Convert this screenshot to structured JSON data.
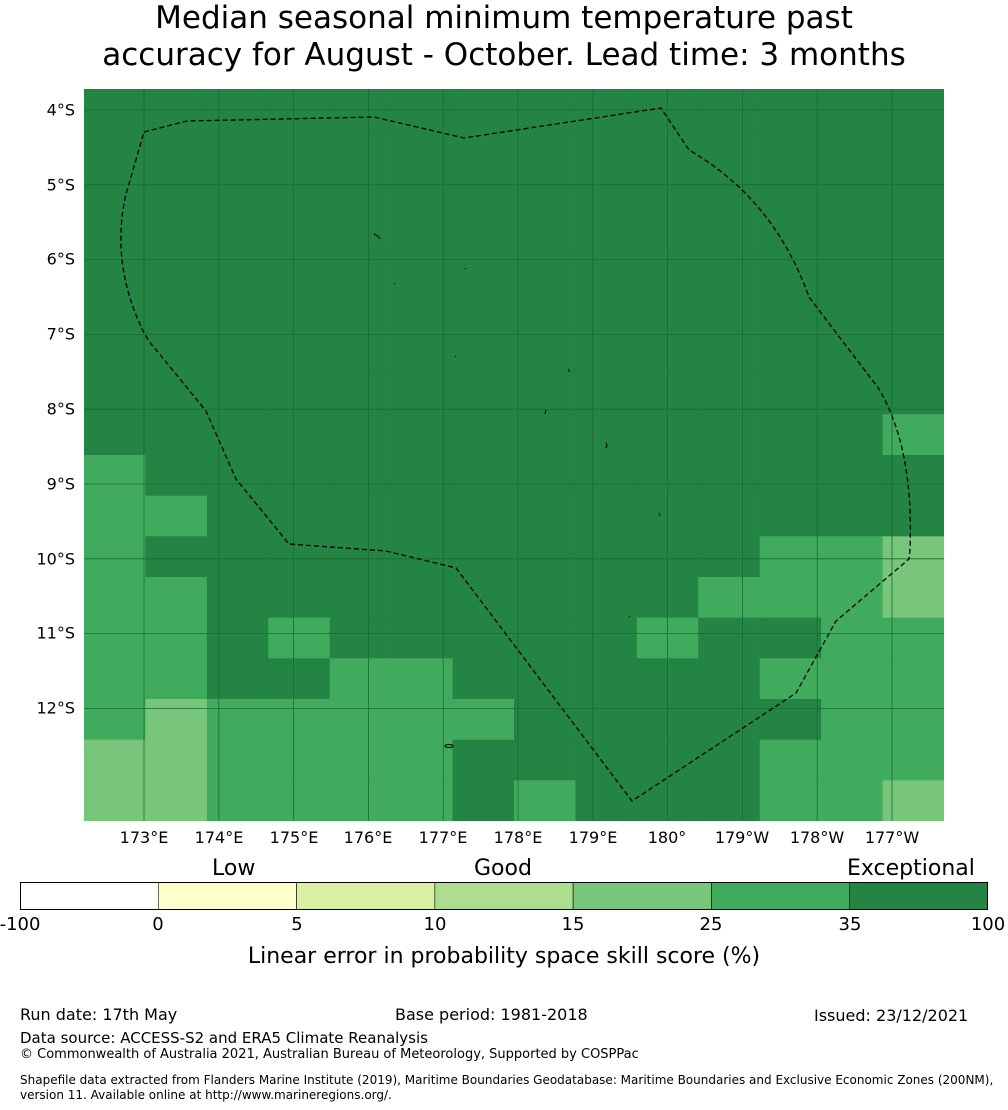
{
  "title": {
    "line1": "Median seasonal minimum temperature past",
    "line2": "accuracy for August - October. Lead time: 3 months"
  },
  "map": {
    "lat_labels": [
      "4°S",
      "5°S",
      "6°S",
      "7°S",
      "8°S",
      "9°S",
      "10°S",
      "11°S",
      "12°S"
    ],
    "lon_labels": [
      "173°E",
      "174°E",
      "175°E",
      "176°E",
      "177°E",
      "178°E",
      "179°E",
      "180°",
      "179°W",
      "178°W",
      "177°W"
    ],
    "grid": "on",
    "boundary_style": "dashed black EEZ outline",
    "skill_grid": {
      "columns": 14,
      "rows": 18,
      "legend_index_note": "values are colorbar bin indices: 0=<0, 1=0-5, 2=5-10, 3=10-15, 4=15-25, 5=25-35, 6=35-100",
      "cells": [
        [
          6,
          6,
          6,
          6,
          6,
          6,
          6,
          6,
          6,
          6,
          6,
          6,
          6,
          6
        ],
        [
          6,
          6,
          6,
          6,
          6,
          6,
          6,
          6,
          6,
          6,
          6,
          6,
          6,
          6
        ],
        [
          6,
          6,
          6,
          6,
          6,
          6,
          6,
          6,
          6,
          6,
          6,
          6,
          6,
          6
        ],
        [
          6,
          6,
          6,
          6,
          6,
          6,
          6,
          6,
          6,
          6,
          6,
          6,
          6,
          6
        ],
        [
          6,
          6,
          6,
          6,
          6,
          6,
          6,
          6,
          6,
          6,
          6,
          6,
          6,
          6
        ],
        [
          6,
          6,
          6,
          6,
          6,
          6,
          6,
          6,
          6,
          6,
          6,
          6,
          6,
          6
        ],
        [
          6,
          6,
          6,
          6,
          6,
          6,
          6,
          6,
          6,
          6,
          6,
          6,
          6,
          6
        ],
        [
          6,
          6,
          6,
          6,
          6,
          6,
          6,
          6,
          6,
          6,
          6,
          6,
          6,
          6
        ],
        [
          6,
          6,
          6,
          6,
          6,
          6,
          6,
          6,
          6,
          6,
          6,
          6,
          6,
          5
        ],
        [
          5,
          6,
          6,
          6,
          6,
          6,
          6,
          6,
          6,
          6,
          6,
          6,
          6,
          6
        ],
        [
          5,
          5,
          6,
          6,
          6,
          6,
          6,
          6,
          6,
          6,
          6,
          6,
          6,
          6
        ],
        [
          5,
          6,
          6,
          6,
          6,
          6,
          6,
          6,
          6,
          6,
          6,
          5,
          5,
          4
        ],
        [
          5,
          5,
          6,
          6,
          6,
          6,
          6,
          6,
          6,
          6,
          5,
          5,
          5,
          4
        ],
        [
          5,
          5,
          6,
          5,
          6,
          6,
          6,
          6,
          6,
          5,
          6,
          6,
          5,
          5
        ],
        [
          5,
          5,
          6,
          6,
          5,
          5,
          6,
          6,
          6,
          6,
          6,
          5,
          5,
          5
        ],
        [
          5,
          4,
          5,
          5,
          5,
          5,
          5,
          6,
          6,
          6,
          6,
          6,
          5,
          5
        ],
        [
          4,
          4,
          5,
          5,
          5,
          5,
          6,
          6,
          6,
          6,
          6,
          5,
          5,
          5
        ],
        [
          4,
          4,
          5,
          5,
          5,
          5,
          6,
          5,
          6,
          6,
          6,
          5,
          5,
          4
        ]
      ]
    },
    "colors": {
      "bin0": "#ffffff",
      "bin1": "#ffffcc",
      "bin2": "#d9f0a3",
      "bin3": "#addd8e",
      "bin4": "#78c679",
      "bin5": "#41ab5d",
      "bin6": "#238443",
      "grid_line": "#1a6a35"
    }
  },
  "colorbar": {
    "category_labels": [
      "Low",
      "Good",
      "Exceptional"
    ],
    "ticks": [
      "-100",
      "0",
      "5",
      "10",
      "15",
      "25",
      "35",
      "100"
    ],
    "colors": [
      "#ffffff",
      "#ffffcc",
      "#d9f0a3",
      "#addd8e",
      "#78c679",
      "#41ab5d",
      "#238443"
    ],
    "label": "Linear error in probability space skill score (%)"
  },
  "footer": {
    "run_date": "Run date: 17th May",
    "base_period": "Base period: 1981-2018",
    "issued": "Issued: 23/12/2021",
    "data_source": "Data source: ACCESS-S2 and ERA5 Climate Reanalysis",
    "copyright": "© Commonwealth of Australia 2021, Australian Bureau of Meteorology, Supported by COSPPac",
    "shapefile_line1": "Shapefile data extracted from Flanders Marine Institute (2019), Maritime Boundaries Geodatabase: Maritime Boundaries and Exclusive Economic Zones (200NM),",
    "shapefile_line2": "version 11. Available online at http://www.marineregions.org/."
  }
}
